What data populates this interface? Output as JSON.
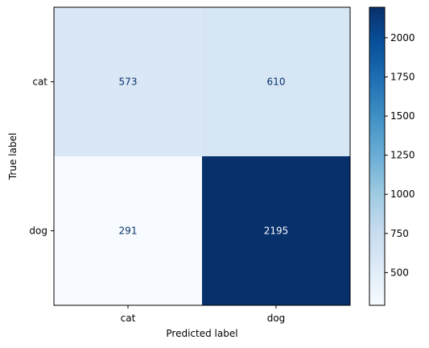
{
  "chart_data": {
    "type": "heatmap",
    "title": "",
    "xlabel": "Predicted label",
    "ylabel": "True label",
    "x_categories": [
      "cat",
      "dog"
    ],
    "y_categories": [
      "cat",
      "dog"
    ],
    "values": [
      [
        573,
        610
      ],
      [
        291,
        2195
      ]
    ],
    "colormap": "Blues",
    "colorbar": {
      "range": [
        291,
        2195
      ],
      "ticks": [
        500,
        750,
        1000,
        1250,
        1500,
        1750,
        2000
      ]
    },
    "grid": false,
    "cell_text_colors": {
      "light": "#08306b",
      "dark": "#f7fbff"
    }
  }
}
